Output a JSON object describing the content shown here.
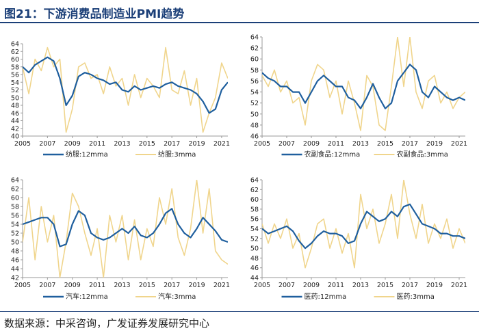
{
  "title": "图21：下游消费品制造业PMI趋势",
  "source": "数据来源：中采咨询，广发证券发展研究中心",
  "colors": {
    "line12": "#1f5f9e",
    "line3": "#f0d58c",
    "axis": "#999999",
    "title": "#1b3f78"
  },
  "chart_data": [
    {
      "type": "line",
      "x_tick_labels": [
        "2005",
        "2007",
        "2009",
        "2011",
        "2013",
        "2015",
        "2017",
        "2019",
        "2021"
      ],
      "xlim": [
        2005,
        2021.5
      ],
      "ylim": [
        40,
        64
      ],
      "y_ticks": [
        40,
        42,
        44,
        46,
        48,
        50,
        52,
        54,
        56,
        58,
        60,
        62,
        64
      ],
      "grid": false,
      "legend_position": "bottom",
      "series": [
        {
          "name": "纺服:12mma",
          "x": [
            2005,
            2005.5,
            2006,
            2006.5,
            2007,
            2007.5,
            2008,
            2008.5,
            2009,
            2009.5,
            2010,
            2010.5,
            2011,
            2011.5,
            2012,
            2012.5,
            2013,
            2013.5,
            2014,
            2014.5,
            2015,
            2015.5,
            2016,
            2016.5,
            2017,
            2017.5,
            2018,
            2018.5,
            2019,
            2019.5,
            2020,
            2020.5,
            2021,
            2021.5
          ],
          "values": [
            58,
            56.5,
            58.5,
            59.5,
            60.5,
            59.5,
            55,
            48,
            50.5,
            55.5,
            56.5,
            56,
            55,
            54.5,
            53.5,
            54,
            52,
            51.5,
            53,
            52,
            52.5,
            53,
            52.5,
            53.5,
            54,
            53,
            52.5,
            52,
            51,
            49,
            46,
            47,
            52,
            54
          ]
        },
        {
          "name": "纺服:3mma",
          "x": [
            2005,
            2005.5,
            2006,
            2006.5,
            2007,
            2007.5,
            2008,
            2008.5,
            2009,
            2009.5,
            2010,
            2010.5,
            2011,
            2011.5,
            2012,
            2012.5,
            2013,
            2013.5,
            2014,
            2014.5,
            2015,
            2015.5,
            2016,
            2016.5,
            2017,
            2017.5,
            2018,
            2018.5,
            2019,
            2019.5,
            2020,
            2020.5,
            2021,
            2021.5
          ],
          "values": [
            58,
            51,
            60,
            57,
            63,
            58,
            60,
            41,
            47,
            58,
            59,
            55,
            56,
            51,
            58,
            53,
            55,
            48,
            56,
            50,
            55,
            53,
            50,
            63,
            52,
            51,
            57,
            48,
            55,
            41,
            46,
            50,
            59,
            55
          ]
        }
      ]
    },
    {
      "type": "line",
      "x_tick_labels": [
        "2005",
        "2007",
        "2009",
        "2011",
        "2013",
        "2015",
        "2017",
        "2019",
        "2021"
      ],
      "xlim": [
        2005,
        2021.5
      ],
      "ylim": [
        46,
        64
      ],
      "y_ticks": [
        46,
        48,
        50,
        52,
        54,
        56,
        58,
        60,
        62,
        64
      ],
      "grid": false,
      "legend_position": "bottom",
      "series": [
        {
          "name": "农副食品:12mma",
          "x": [
            2005,
            2005.5,
            2006,
            2006.5,
            2007,
            2007.5,
            2008,
            2008.5,
            2009,
            2009.5,
            2010,
            2010.5,
            2011,
            2011.5,
            2012,
            2012.5,
            2013,
            2013.5,
            2014,
            2014.5,
            2015,
            2015.5,
            2016,
            2016.5,
            2017,
            2017.5,
            2018,
            2018.5,
            2019,
            2019.5,
            2020,
            2020.5,
            2021,
            2021.5
          ],
          "values": [
            57.5,
            56.5,
            56,
            55,
            55,
            54,
            54,
            52,
            54,
            56,
            57,
            56,
            55,
            55,
            53,
            52.5,
            51,
            53,
            55.5,
            53,
            51,
            52,
            56,
            57.5,
            59,
            58,
            54,
            53,
            55,
            54,
            53,
            52.5,
            53,
            52.5
          ]
        },
        {
          "name": "农副食品:3mma",
          "x": [
            2005,
            2005.5,
            2006,
            2006.5,
            2007,
            2007.5,
            2008,
            2008.5,
            2009,
            2009.5,
            2010,
            2010.5,
            2011,
            2011.5,
            2012,
            2012.5,
            2013,
            2013.5,
            2014,
            2014.5,
            2015,
            2015.5,
            2016,
            2016.5,
            2017,
            2017.5,
            2018,
            2018.5,
            2019,
            2019.5,
            2020,
            2020.5,
            2021,
            2021.5
          ],
          "values": [
            57,
            55,
            58,
            54,
            56,
            52,
            53,
            48,
            56,
            59,
            58,
            53,
            56,
            50,
            56,
            52,
            47,
            57,
            55,
            48,
            47,
            55,
            64,
            55,
            64,
            54,
            51,
            56,
            57,
            52,
            54,
            51,
            53,
            54
          ]
        }
      ]
    },
    {
      "type": "line",
      "x_tick_labels": [
        "2005",
        "2007",
        "2009",
        "2011",
        "2013",
        "2015",
        "2017",
        "2019",
        "2021"
      ],
      "xlim": [
        2005,
        2021.5
      ],
      "ylim": [
        42,
        64
      ],
      "y_ticks": [
        42,
        44,
        46,
        48,
        50,
        52,
        54,
        56,
        58,
        60,
        62,
        64
      ],
      "grid": false,
      "legend_position": "bottom",
      "series": [
        {
          "name": "汽车:12mma",
          "x": [
            2005,
            2005.5,
            2006,
            2006.5,
            2007,
            2007.5,
            2008,
            2008.5,
            2009,
            2009.5,
            2010,
            2010.5,
            2011,
            2011.5,
            2012,
            2012.5,
            2013,
            2013.5,
            2014,
            2014.5,
            2015,
            2015.5,
            2016,
            2016.5,
            2017,
            2017.5,
            2018,
            2018.5,
            2019,
            2019.5,
            2020,
            2020.5,
            2021,
            2021.5
          ],
          "values": [
            54,
            54.5,
            55,
            55.5,
            55.5,
            54,
            49,
            49.5,
            54,
            57,
            56,
            52,
            51,
            50.5,
            51,
            52,
            53,
            52,
            53.5,
            51.5,
            51,
            52,
            54,
            56.5,
            57.5,
            54,
            52,
            51,
            53,
            55.5,
            54,
            52.5,
            50.5,
            50
          ]
        },
        {
          "name": "汽车:3mma",
          "x": [
            2005,
            2005.5,
            2006,
            2006.5,
            2007,
            2007.5,
            2008,
            2008.5,
            2009,
            2009.5,
            2010,
            2010.5,
            2011,
            2011.5,
            2012,
            2012.5,
            2013,
            2013.5,
            2014,
            2014.5,
            2015,
            2015.5,
            2016,
            2016.5,
            2017,
            2017.5,
            2018,
            2018.5,
            2019,
            2019.5,
            2020,
            2020.5,
            2021,
            2021.5
          ],
          "values": [
            50,
            60,
            46,
            58,
            50,
            56,
            42,
            50,
            61,
            58,
            52,
            47,
            53,
            42,
            56,
            50,
            56,
            46,
            55,
            46,
            53,
            49,
            60,
            54,
            62,
            51,
            47,
            53,
            64,
            52,
            62,
            48,
            46,
            45
          ]
        }
      ]
    },
    {
      "type": "line",
      "x_tick_labels": [
        "2005",
        "2007",
        "2009",
        "2011",
        "2013",
        "2015",
        "2017",
        "2019",
        "2021"
      ],
      "xlim": [
        2005,
        2021.5
      ],
      "ylim": [
        44,
        64
      ],
      "y_ticks": [
        44,
        46,
        48,
        50,
        52,
        54,
        56,
        58,
        60,
        62,
        64
      ],
      "grid": false,
      "legend_position": "bottom",
      "series": [
        {
          "name": "医药:12mma",
          "x": [
            2005,
            2005.5,
            2006,
            2006.5,
            2007,
            2007.5,
            2008,
            2008.5,
            2009,
            2009.5,
            2010,
            2010.5,
            2011,
            2011.5,
            2012,
            2012.5,
            2013,
            2013.5,
            2014,
            2014.5,
            2015,
            2015.5,
            2016,
            2016.5,
            2017,
            2017.5,
            2018,
            2018.5,
            2019,
            2019.5,
            2020,
            2020.5,
            2021,
            2021.5
          ],
          "values": [
            54,
            53,
            53.5,
            54,
            54.5,
            53.5,
            51.5,
            50,
            51,
            52.5,
            53.5,
            53,
            53,
            52.5,
            51,
            51.5,
            55,
            57.5,
            56.5,
            55.5,
            56,
            57.5,
            56.5,
            58.5,
            59,
            57,
            55,
            54.5,
            54,
            53,
            53,
            52.5,
            52.5,
            52
          ]
        },
        {
          "name": "医药:3mma",
          "x": [
            2005,
            2005.5,
            2006,
            2006.5,
            2007,
            2007.5,
            2008,
            2008.5,
            2009,
            2009.5,
            2010,
            2010.5,
            2011,
            2011.5,
            2012,
            2012.5,
            2013,
            2013.5,
            2014,
            2014.5,
            2015,
            2015.5,
            2016,
            2016.5,
            2017,
            2017.5,
            2018,
            2018.5,
            2019,
            2019.5,
            2020,
            2020.5,
            2021,
            2021.5
          ],
          "values": [
            55,
            51,
            55,
            52,
            56,
            50,
            53,
            46,
            50,
            55,
            56,
            50,
            54,
            49,
            53,
            46,
            61,
            54,
            58,
            51,
            55,
            61,
            52,
            64,
            57,
            52,
            59,
            51,
            55,
            52,
            56,
            50,
            54,
            51
          ]
        }
      ]
    }
  ]
}
